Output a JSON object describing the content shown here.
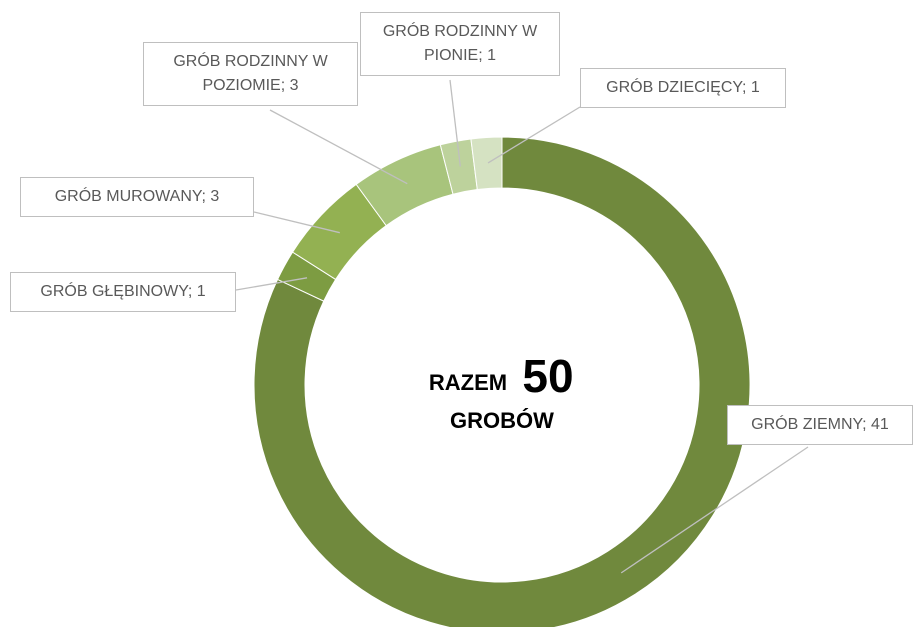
{
  "chart_data": {
    "type": "donut",
    "categories": [
      "GRÓB ZIEMNY",
      "GRÓB GŁĘBINOWY",
      "GRÓB MUROWANY",
      "GRÓB RODZINNY W POZIOMIE",
      "GRÓB RODZINNY W PIONIE",
      "GRÓB DZIECIĘCY"
    ],
    "values": [
      41,
      1,
      3,
      3,
      1,
      1
    ],
    "value_labels": [
      "GRÓB ZIEMNY; 41",
      "GRÓB GŁĘBINOWY; 1",
      "GRÓB MUROWANY; 3",
      "GRÓB RODZINNY W POZIOMIE; 3",
      "GRÓB RODZINNY W PIONIE; 1",
      "GRÓB DZIECIĘCY; 1"
    ],
    "colors": [
      "#70893d",
      "#7d9c42",
      "#93b152",
      "#a8c47c",
      "#bdd29c",
      "#d5e2c2"
    ],
    "center_label": "RAZEM",
    "total": 50,
    "center_unit": "GROBÓW"
  }
}
